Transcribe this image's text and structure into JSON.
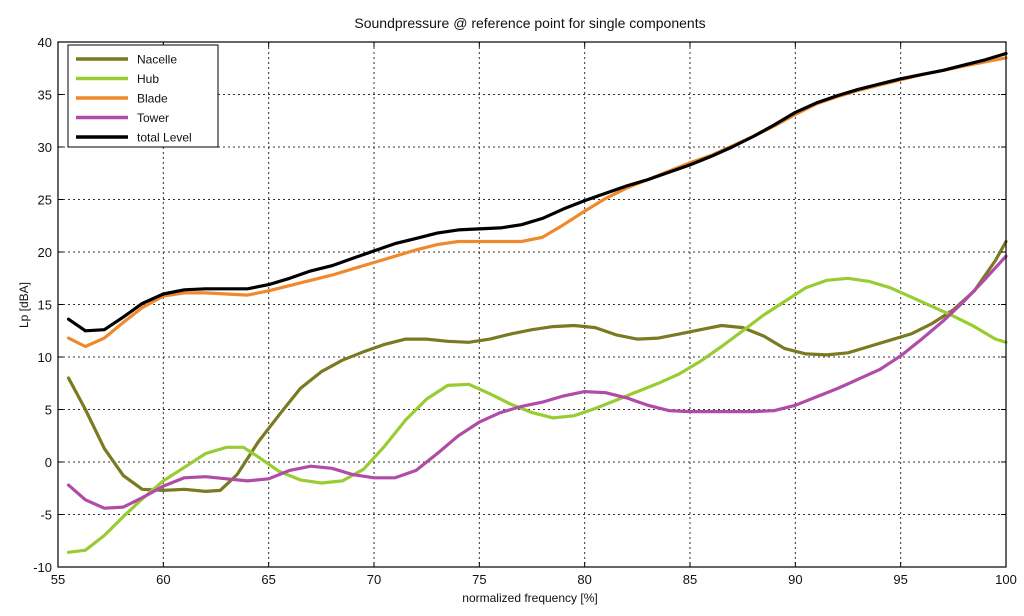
{
  "chart_data": {
    "type": "line",
    "title": "Soundpressure @ reference point for single components",
    "xlabel": "normalized frequency [%]",
    "ylabel": "Lp [dBA]",
    "xlim": [
      55,
      100
    ],
    "ylim": [
      -10,
      40
    ],
    "xticks": [
      55,
      60,
      65,
      70,
      75,
      80,
      85,
      90,
      95,
      100
    ],
    "yticks": [
      -10,
      -5,
      0,
      5,
      10,
      15,
      20,
      25,
      30,
      35,
      40
    ],
    "grid": true,
    "legend_position": "top-left",
    "series": [
      {
        "name": "Nacelle",
        "color": "#7a7a22",
        "x": [
          55.5,
          56.3,
          57.2,
          58.1,
          59,
          60,
          61,
          62,
          62.7,
          63.5,
          64.5,
          65.5,
          66.5,
          67.5,
          68.5,
          69.5,
          70.5,
          71.5,
          72.5,
          73.5,
          74.5,
          75.5,
          76.5,
          77.5,
          78.5,
          79.5,
          80.5,
          81.5,
          82.5,
          83.5,
          84.5,
          85.5,
          86.5,
          87.5,
          88.5,
          89.5,
          90.5,
          91.5,
          92.5,
          93.5,
          94.5,
          95.5,
          96.5,
          97.5,
          98.5,
          99.5,
          100
        ],
        "values": [
          8,
          5,
          1.3,
          -1.3,
          -2.6,
          -2.7,
          -2.6,
          -2.8,
          -2.7,
          -1.2,
          1.9,
          4.5,
          7,
          8.6,
          9.7,
          10.5,
          11.2,
          11.7,
          11.7,
          11.5,
          11.4,
          11.7,
          12.2,
          12.6,
          12.9,
          13,
          12.8,
          12.1,
          11.7,
          11.8,
          12.2,
          12.6,
          13,
          12.8,
          12,
          10.8,
          10.3,
          10.2,
          10.4,
          11,
          11.6,
          12.2,
          13.2,
          14.5,
          16.3,
          19.2,
          21
        ]
      },
      {
        "name": "Hub",
        "color": "#99cc33",
        "x": [
          55.5,
          56.3,
          57.2,
          58.1,
          59,
          60,
          61,
          62,
          63,
          63.8,
          64.5,
          65.5,
          66.5,
          67.5,
          68.5,
          69.5,
          70.5,
          71.5,
          72.5,
          73.5,
          74.5,
          75.5,
          76.5,
          77.5,
          78.5,
          79.5,
          80.5,
          81.5,
          82.5,
          83.5,
          84.5,
          85.5,
          86.5,
          87.5,
          88.5,
          89.5,
          90.5,
          91.5,
          92.5,
          93.5,
          94.5,
          95.5,
          96.5,
          97.5,
          98.5,
          99.5,
          100
        ],
        "values": [
          -8.6,
          -8.4,
          -7,
          -5.2,
          -3.5,
          -1.8,
          -0.5,
          0.8,
          1.4,
          1.4,
          0.5,
          -0.9,
          -1.7,
          -2,
          -1.8,
          -0.7,
          1.5,
          4,
          6,
          7.3,
          7.4,
          6.5,
          5.5,
          4.7,
          4.2,
          4.4,
          5.1,
          5.9,
          6.7,
          7.5,
          8.4,
          9.6,
          11,
          12.5,
          14,
          15.3,
          16.6,
          17.3,
          17.5,
          17.2,
          16.6,
          15.7,
          14.8,
          13.9,
          12.9,
          11.7,
          11.4
        ]
      },
      {
        "name": "Blade",
        "color": "#f0892c",
        "x": [
          55.5,
          56.3,
          57.2,
          58.1,
          59,
          60,
          61,
          62,
          63,
          64,
          65,
          66,
          67,
          68,
          69,
          70,
          71,
          72,
          73,
          74,
          75,
          76,
          77,
          78,
          79,
          80,
          81,
          82,
          83,
          84,
          85,
          86,
          87,
          88,
          89,
          90,
          91,
          92,
          93,
          94,
          95,
          96,
          97,
          98,
          99,
          100
        ],
        "values": [
          11.8,
          11,
          11.8,
          13.3,
          14.7,
          15.8,
          16.1,
          16.1,
          16,
          15.9,
          16.3,
          16.8,
          17.3,
          17.8,
          18.4,
          19,
          19.6,
          20.2,
          20.7,
          21,
          21,
          21,
          21,
          21.4,
          22.6,
          23.9,
          25.1,
          26.1,
          26.9,
          27.7,
          28.5,
          29.2,
          30.1,
          31,
          32,
          33.1,
          34.1,
          34.8,
          35.4,
          35.9,
          36.4,
          36.9,
          37.3,
          37.7,
          38.1,
          38.5
        ]
      },
      {
        "name": "Tower",
        "color": "#b04ca8",
        "x": [
          55.5,
          56.3,
          57.2,
          58.1,
          59,
          60,
          61,
          62,
          63,
          64,
          65,
          66,
          67,
          68,
          69,
          70,
          71,
          72,
          73,
          74,
          75,
          76,
          77,
          78,
          79,
          80,
          81,
          82,
          83,
          84,
          85,
          86,
          87,
          88,
          89,
          90,
          91,
          92,
          93,
          94,
          95,
          96,
          97,
          98,
          99,
          100
        ],
        "values": [
          -2.2,
          -3.6,
          -4.4,
          -4.3,
          -3.4,
          -2.3,
          -1.5,
          -1.4,
          -1.6,
          -1.8,
          -1.6,
          -0.8,
          -0.4,
          -0.6,
          -1.2,
          -1.5,
          -1.5,
          -0.8,
          0.8,
          2.5,
          3.8,
          4.7,
          5.3,
          5.7,
          6.3,
          6.7,
          6.6,
          6.1,
          5.4,
          4.9,
          4.8,
          4.8,
          4.8,
          4.8,
          4.9,
          5.4,
          6.2,
          7,
          7.9,
          8.8,
          10.1,
          11.7,
          13.4,
          15.3,
          17.4,
          19.6
        ]
      },
      {
        "name": "total Level",
        "color": "#000000",
        "x": [
          55.5,
          56.3,
          57.2,
          58.1,
          59,
          60,
          61,
          62,
          63,
          64,
          65,
          66,
          67,
          68,
          69,
          70,
          71,
          72,
          73,
          74,
          75,
          76,
          77,
          78,
          79,
          80,
          81,
          82,
          83,
          84,
          85,
          86,
          87,
          88,
          89,
          90,
          91,
          92,
          93,
          94,
          95,
          96,
          97,
          98,
          99,
          100
        ],
        "values": [
          13.6,
          12.5,
          12.6,
          13.8,
          15.1,
          16,
          16.4,
          16.5,
          16.5,
          16.5,
          16.9,
          17.5,
          18.2,
          18.7,
          19.4,
          20.1,
          20.8,
          21.3,
          21.8,
          22.1,
          22.2,
          22.3,
          22.6,
          23.2,
          24.1,
          24.9,
          25.6,
          26.3,
          26.9,
          27.6,
          28.3,
          29.1,
          30,
          31,
          32.1,
          33.3,
          34.2,
          34.9,
          35.5,
          36,
          36.5,
          36.9,
          37.3,
          37.8,
          38.3,
          38.9
        ]
      }
    ]
  }
}
